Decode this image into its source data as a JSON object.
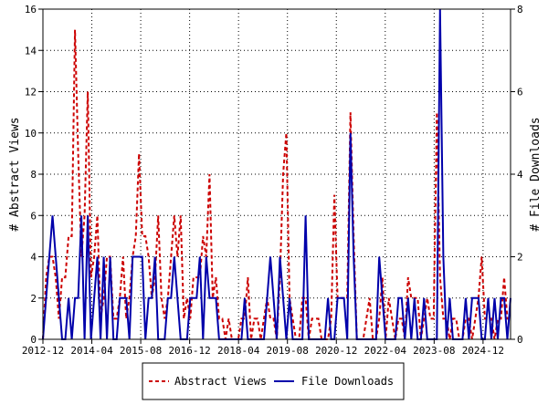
{
  "chart_data": {
    "type": "line",
    "ylabel_left": "# Abstract Views",
    "ylabel_right": "# File Downloads",
    "ylim_left": [
      0,
      16
    ],
    "ylim_right": [
      0,
      8
    ],
    "yticks_left": [
      "0",
      "2",
      "4",
      "6",
      "8",
      "10",
      "12",
      "14",
      "16"
    ],
    "yticks_right": [
      "0",
      "2",
      "4",
      "6",
      "8"
    ],
    "xlim": [
      "2012-12",
      "2025-09"
    ],
    "xticks": [
      "2012-12",
      "2014-04",
      "2015-08",
      "2016-12",
      "2018-04",
      "2019-08",
      "2020-12",
      "2022-04",
      "2023-08",
      "2024-12"
    ],
    "grid": true,
    "legend": "bottom-center",
    "series": [
      {
        "name": "Abstract Views",
        "axis": "left",
        "style": "dashed",
        "values": [
          0,
          3,
          4,
          4,
          3,
          1,
          3,
          3,
          5,
          5,
          15,
          9,
          4,
          6,
          12,
          3,
          4,
          6,
          1,
          2,
          4,
          4,
          1,
          1,
          2,
          4,
          1,
          2,
          4,
          5,
          9,
          5,
          5,
          4,
          2,
          3,
          6,
          2,
          1,
          2,
          4,
          6,
          4,
          6,
          1,
          2,
          1,
          3,
          3,
          3,
          5,
          4,
          8,
          2,
          3,
          1,
          1,
          0,
          1,
          0,
          0,
          0,
          1,
          1,
          3,
          0,
          1,
          1,
          0,
          1,
          2,
          1,
          1,
          0,
          3,
          8,
          10,
          2,
          1,
          0,
          0,
          2,
          2,
          0,
          1,
          1,
          1,
          0,
          0,
          0,
          1,
          7,
          2,
          2,
          2,
          2,
          11,
          5,
          0,
          0,
          0,
          1,
          2,
          0,
          0,
          1,
          3,
          0,
          2,
          1,
          0,
          1,
          1,
          0,
          3,
          2,
          2,
          2,
          0,
          1,
          2,
          1,
          1,
          11,
          3,
          1,
          1,
          0,
          1,
          1,
          0,
          0,
          1,
          1,
          0,
          1,
          2,
          4,
          1,
          1,
          1,
          0,
          1,
          1,
          3,
          1,
          1
        ]
      },
      {
        "name": "File Downloads",
        "axis": "right",
        "style": "solid",
        "values": [
          0,
          1,
          2,
          3,
          2,
          1,
          0,
          0,
          1,
          0,
          1,
          1,
          3,
          0,
          3,
          0,
          1,
          2,
          0,
          2,
          0,
          2,
          0,
          0,
          1,
          1,
          1,
          0,
          2,
          2,
          2,
          2,
          0,
          1,
          1,
          2,
          0,
          0,
          0,
          1,
          1,
          2,
          1,
          0,
          0,
          0,
          1,
          1,
          1,
          2,
          0,
          2,
          1,
          1,
          1,
          0,
          0,
          0,
          0,
          0,
          0,
          0,
          0,
          1,
          0,
          0,
          0,
          0,
          0,
          0,
          1,
          2,
          1,
          0,
          2,
          1,
          0,
          1,
          0,
          0,
          0,
          0,
          3,
          0,
          0,
          0,
          0,
          0,
          0,
          1,
          0,
          0,
          1,
          1,
          1,
          0,
          5,
          2,
          0,
          0,
          0,
          0,
          0,
          0,
          0,
          2,
          1,
          0,
          0,
          0,
          0,
          1,
          1,
          0,
          1,
          0,
          1,
          0,
          0,
          1,
          0,
          0,
          0,
          0,
          8,
          2,
          0,
          1,
          0,
          0,
          0,
          0,
          1,
          0,
          1,
          1,
          1,
          0,
          0,
          1,
          0,
          1,
          0,
          1,
          1,
          0,
          1
        ]
      }
    ]
  }
}
